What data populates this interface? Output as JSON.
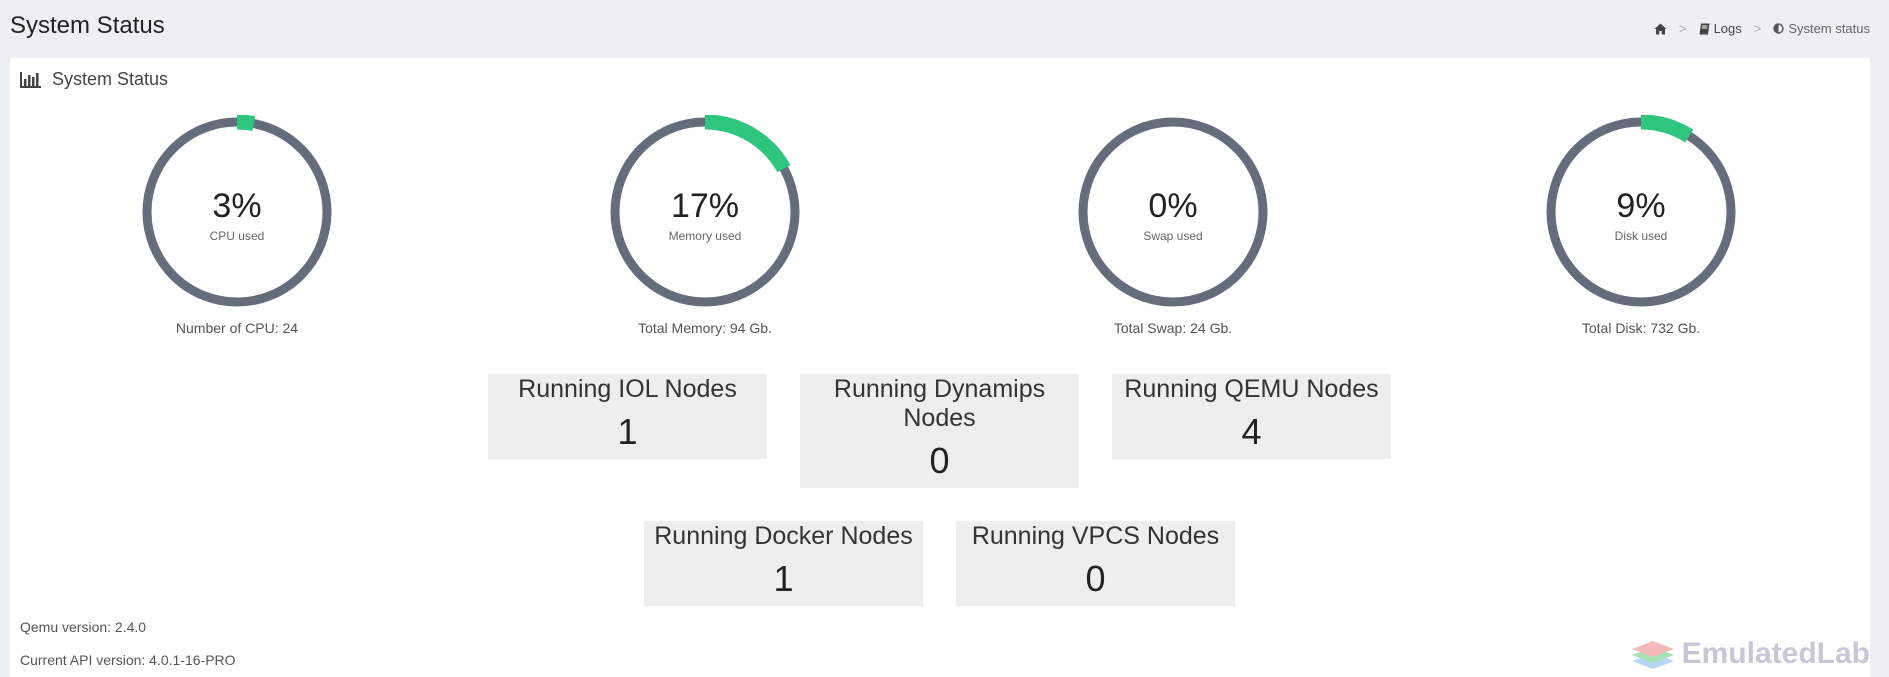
{
  "header": {
    "title": "System Status",
    "breadcrumb": {
      "home_icon": "home-icon",
      "logs_label": "Logs",
      "logs_icon": "book-icon",
      "current_label": "System status",
      "current_icon": "adjust-icon"
    }
  },
  "panel": {
    "title": "System Status",
    "title_icon": "bar-chart-icon"
  },
  "gauges": [
    {
      "percent_label": "3%",
      "percent": 3,
      "sublabel": "CPU used",
      "total": "Number of CPU: 24"
    },
    {
      "percent_label": "17%",
      "percent": 17,
      "sublabel": "Memory used",
      "total": "Total Memory: 94 Gb."
    },
    {
      "percent_label": "0%",
      "percent": 0,
      "sublabel": "Swap used",
      "total": "Total Swap: 24 Gb."
    },
    {
      "percent_label": "9%",
      "percent": 9,
      "sublabel": "Disk used",
      "total": "Total Disk: 732 Gb."
    }
  ],
  "colors": {
    "gauge_track": "#656c7c",
    "gauge_fill": "#2ec57f",
    "box_bg": "#eeeeee"
  },
  "nodes": {
    "iol": {
      "label": "Running IOL Nodes",
      "count": "1"
    },
    "dynamips": {
      "label": "Running Dynamips Nodes",
      "count": "0"
    },
    "qemu": {
      "label": "Running QEMU Nodes",
      "count": "4"
    },
    "docker": {
      "label": "Running Docker Nodes",
      "count": "1"
    },
    "vpcs": {
      "label": "Running VPCS Nodes",
      "count": "0"
    }
  },
  "footer": {
    "qemu_version": "Qemu version: 2.4.0",
    "api_version": "Current API version: 4.0.1-16-PRO"
  },
  "watermark": {
    "text": "EmulatedLab",
    "icon": "stack-layers-icon"
  }
}
